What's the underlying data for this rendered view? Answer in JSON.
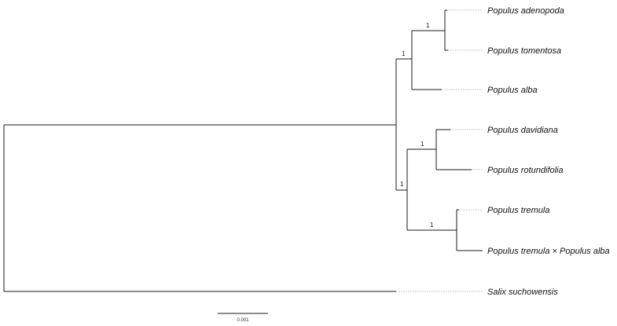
{
  "tree": {
    "taxa": [
      "Populus adenopoda",
      "Populus tomentosa",
      "Populus alba",
      "Populus davidiana",
      "Populus rotundifolia",
      "Populus tremula",
      "Populus tremula × Populus alba",
      "Salix suchowensis"
    ],
    "support_values": [
      "1",
      "1",
      "1",
      "1",
      "1"
    ],
    "scale_bar": {
      "label": "0.001"
    },
    "colors": {
      "branch": "#1a1a1a",
      "guide_line": "#b8b8b8",
      "text": "#111111"
    }
  }
}
